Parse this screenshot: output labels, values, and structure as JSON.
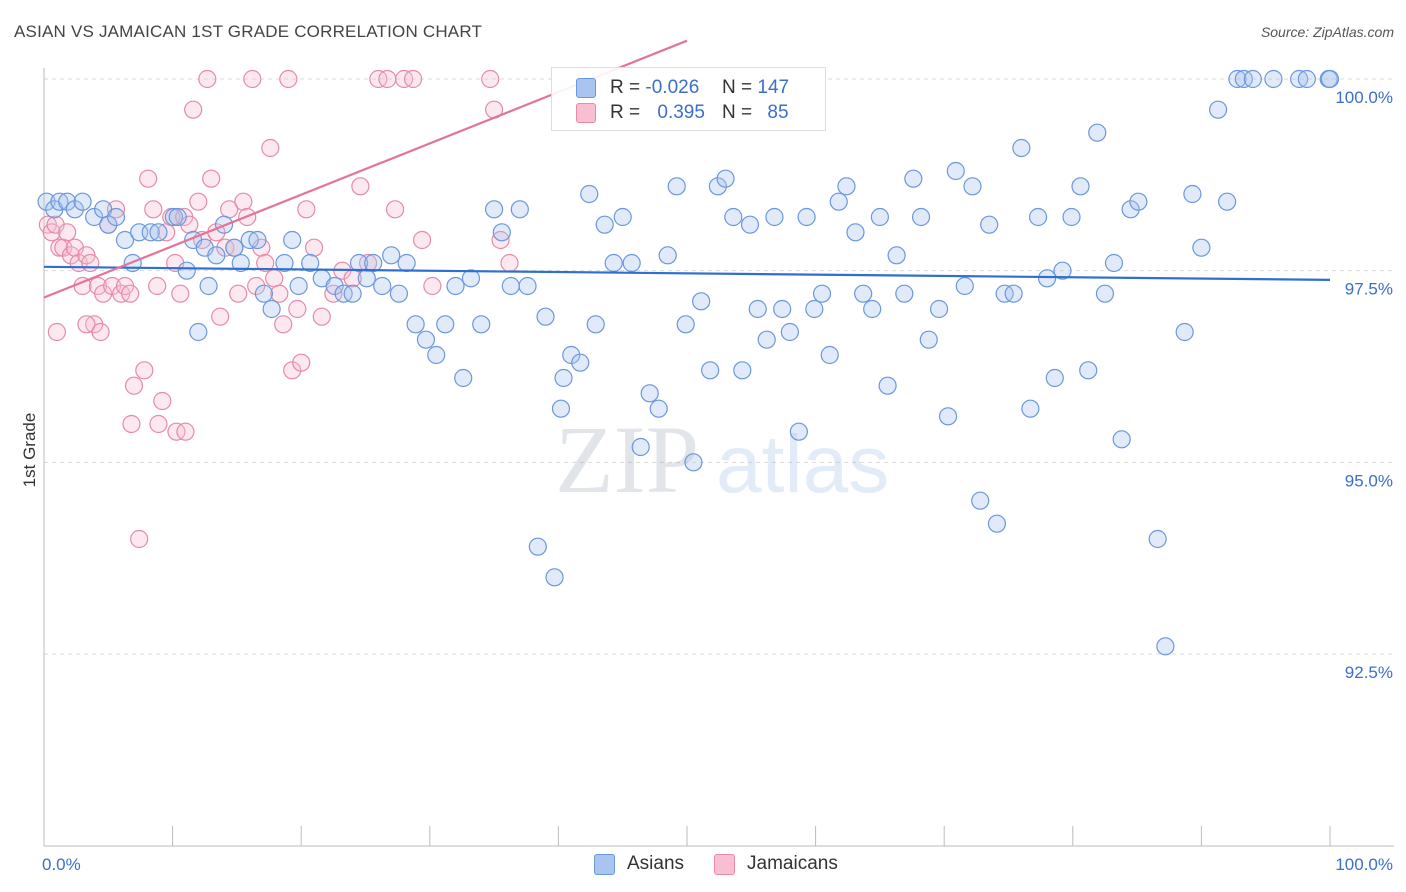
{
  "title": "ASIAN VS JAMAICAN 1ST GRADE CORRELATION CHART",
  "source": "Source: ZipAtlas.com",
  "watermark": {
    "zip": "ZIP",
    "atlas": "atlas"
  },
  "legend": {
    "rows": [
      {
        "r_label": "R =",
        "r_value": "-0.026",
        "n_label": "N =",
        "n_value": "147",
        "color": "#a9c4ef",
        "border": "#6a97dd"
      },
      {
        "r_label": "R =",
        "r_value": "0.395",
        "n_label": "N =",
        "n_value": "85",
        "color": "#f7bfd0",
        "border": "#e58aa8"
      }
    ]
  },
  "bottom_legend": [
    {
      "label": "Asians",
      "color": "#a9c4ef",
      "border": "#6a97dd"
    },
    {
      "label": "Jamaicans",
      "color": "#f7bfd0",
      "border": "#e58aa8"
    }
  ],
  "chart_data": {
    "type": "scatter",
    "title": "ASIAN VS JAMAICAN 1ST GRADE CORRELATION CHART",
    "xlabel": "",
    "ylabel": "1st Grade",
    "xlim": [
      0,
      100
    ],
    "ylim": [
      89.9,
      100.4
    ],
    "x_tick_labels": [
      "0.0%",
      "100.0%"
    ],
    "y_ticks": [
      92.5,
      95.0,
      97.5,
      100.0
    ],
    "y_tick_labels": [
      "92.5%",
      "95.0%",
      "97.5%",
      "100.0%"
    ],
    "grid": "horizontal dashed",
    "colors": {
      "asians": "#6a97dd",
      "asians_fill": "#a9c4ef",
      "jamaicans": "#e58aa8",
      "jamaicans_fill": "#f7bfd0",
      "asians_line": "#2f6fd1",
      "jamaicans_line": "#e2739a"
    },
    "series": [
      {
        "name": "Asians",
        "trend": {
          "x": [
            0,
            100
          ],
          "y": [
            97.55,
            97.38
          ]
        },
        "points": [
          [
            0.2,
            98.4
          ],
          [
            0.8,
            98.3
          ],
          [
            1.2,
            98.4
          ],
          [
            1.8,
            98.4
          ],
          [
            2.4,
            98.3
          ],
          [
            3.0,
            98.4
          ],
          [
            3.9,
            98.2
          ],
          [
            4.6,
            98.3
          ],
          [
            5.0,
            98.1
          ],
          [
            5.6,
            98.2
          ],
          [
            6.3,
            97.9
          ],
          [
            6.9,
            97.6
          ],
          [
            7.4,
            98.0
          ],
          [
            8.3,
            98.0
          ],
          [
            8.9,
            98.0
          ],
          [
            10.1,
            98.2
          ],
          [
            10.4,
            98.2
          ],
          [
            11.1,
            97.5
          ],
          [
            11.6,
            97.9
          ],
          [
            12.0,
            96.7
          ],
          [
            12.5,
            97.8
          ],
          [
            12.8,
            97.3
          ],
          [
            13.4,
            97.7
          ],
          [
            14.0,
            98.1
          ],
          [
            14.8,
            97.8
          ],
          [
            15.3,
            97.6
          ],
          [
            16.0,
            97.9
          ],
          [
            16.6,
            97.9
          ],
          [
            17.1,
            97.2
          ],
          [
            17.7,
            97.0
          ],
          [
            18.7,
            97.6
          ],
          [
            19.3,
            97.9
          ],
          [
            19.8,
            97.3
          ],
          [
            20.7,
            97.6
          ],
          [
            21.6,
            97.4
          ],
          [
            22.6,
            97.3
          ],
          [
            23.3,
            97.2
          ],
          [
            24.0,
            97.2
          ],
          [
            24.5,
            97.6
          ],
          [
            25.1,
            97.4
          ],
          [
            25.6,
            97.6
          ],
          [
            26.3,
            97.3
          ],
          [
            27.0,
            97.7
          ],
          [
            27.6,
            97.2
          ],
          [
            28.2,
            97.6
          ],
          [
            28.9,
            96.8
          ],
          [
            29.7,
            96.6
          ],
          [
            30.5,
            96.4
          ],
          [
            31.2,
            96.8
          ],
          [
            32.0,
            97.3
          ],
          [
            32.6,
            96.1
          ],
          [
            33.2,
            97.4
          ],
          [
            34.0,
            96.8
          ],
          [
            35.0,
            98.3
          ],
          [
            35.6,
            98.0
          ],
          [
            36.3,
            97.3
          ],
          [
            37.0,
            98.3
          ],
          [
            37.6,
            97.3
          ],
          [
            38.4,
            93.9
          ],
          [
            39.0,
            96.9
          ],
          [
            39.7,
            93.5
          ],
          [
            40.4,
            96.1
          ],
          [
            41.0,
            96.4
          ],
          [
            41.7,
            96.3
          ],
          [
            42.4,
            98.5
          ],
          [
            42.9,
            96.8
          ],
          [
            43.6,
            98.1
          ],
          [
            44.3,
            97.6
          ],
          [
            45.0,
            98.2
          ],
          [
            45.7,
            97.6
          ],
          [
            46.4,
            95.2
          ],
          [
            47.1,
            95.9
          ],
          [
            47.8,
            95.7
          ],
          [
            48.5,
            97.7
          ],
          [
            49.2,
            98.6
          ],
          [
            49.9,
            96.8
          ],
          [
            50.5,
            95.0
          ],
          [
            51.1,
            97.1
          ],
          [
            51.8,
            96.2
          ],
          [
            52.4,
            98.6
          ],
          [
            53.0,
            98.7
          ],
          [
            53.6,
            98.2
          ],
          [
            54.3,
            96.2
          ],
          [
            54.9,
            98.1
          ],
          [
            55.5,
            97.0
          ],
          [
            56.2,
            96.6
          ],
          [
            56.8,
            98.2
          ],
          [
            57.4,
            97.0
          ],
          [
            58.0,
            96.7
          ],
          [
            58.7,
            95.4
          ],
          [
            59.3,
            98.2
          ],
          [
            59.9,
            97.0
          ],
          [
            60.5,
            97.2
          ],
          [
            61.1,
            96.4
          ],
          [
            61.8,
            98.4
          ],
          [
            62.4,
            98.6
          ],
          [
            63.1,
            98.0
          ],
          [
            63.7,
            97.2
          ],
          [
            64.4,
            97.0
          ],
          [
            65.0,
            98.2
          ],
          [
            65.6,
            96.0
          ],
          [
            66.3,
            97.7
          ],
          [
            66.9,
            97.2
          ],
          [
            67.6,
            98.7
          ],
          [
            68.2,
            98.2
          ],
          [
            68.8,
            96.6
          ],
          [
            69.6,
            97.0
          ],
          [
            70.3,
            95.6
          ],
          [
            70.9,
            98.8
          ],
          [
            71.6,
            97.3
          ],
          [
            72.2,
            98.6
          ],
          [
            72.8,
            94.5
          ],
          [
            73.5,
            98.1
          ],
          [
            74.1,
            94.2
          ],
          [
            74.7,
            97.2
          ],
          [
            75.4,
            97.2
          ],
          [
            76.0,
            99.1
          ],
          [
            76.7,
            95.7
          ],
          [
            77.3,
            98.2
          ],
          [
            78.0,
            97.4
          ],
          [
            78.6,
            96.1
          ],
          [
            79.2,
            97.5
          ],
          [
            79.9,
            98.2
          ],
          [
            80.6,
            98.6
          ],
          [
            81.2,
            96.2
          ],
          [
            81.9,
            99.3
          ],
          [
            82.5,
            97.2
          ],
          [
            83.2,
            97.6
          ],
          [
            83.8,
            95.3
          ],
          [
            84.5,
            98.3
          ],
          [
            85.1,
            98.4
          ],
          [
            86.6,
            94.0
          ],
          [
            87.2,
            92.6
          ],
          [
            88.7,
            96.7
          ],
          [
            89.3,
            98.5
          ],
          [
            90.0,
            97.8
          ],
          [
            91.3,
            99.6
          ],
          [
            92.0,
            98.4
          ],
          [
            92.8,
            100.0
          ],
          [
            93.3,
            100.0
          ],
          [
            94.0,
            100.0
          ],
          [
            95.6,
            100.0
          ],
          [
            97.6,
            100.0
          ],
          [
            98.2,
            100.0
          ],
          [
            99.9,
            100.0
          ],
          [
            100.0,
            100.0
          ],
          [
            40.2,
            95.7
          ]
        ]
      },
      {
        "name": "Jamaicans",
        "trend": {
          "x": [
            0,
            50
          ],
          "y": [
            97.15,
            100.5
          ]
        },
        "points": [
          [
            0.3,
            98.1
          ],
          [
            0.6,
            98.0
          ],
          [
            0.9,
            98.1
          ],
          [
            1.2,
            97.8
          ],
          [
            1.5,
            97.8
          ],
          [
            1.8,
            98.0
          ],
          [
            2.1,
            97.7
          ],
          [
            2.4,
            97.8
          ],
          [
            2.7,
            97.6
          ],
          [
            3.0,
            97.3
          ],
          [
            3.3,
            97.7
          ],
          [
            3.6,
            97.6
          ],
          [
            3.9,
            96.8
          ],
          [
            4.2,
            97.3
          ],
          [
            4.6,
            97.2
          ],
          [
            5.0,
            98.1
          ],
          [
            5.3,
            97.3
          ],
          [
            5.6,
            98.3
          ],
          [
            6.0,
            97.2
          ],
          [
            6.3,
            97.3
          ],
          [
            6.7,
            97.2
          ],
          [
            7.0,
            96.0
          ],
          [
            7.4,
            94.0
          ],
          [
            7.8,
            96.2
          ],
          [
            8.1,
            98.7
          ],
          [
            8.5,
            98.3
          ],
          [
            8.8,
            97.3
          ],
          [
            9.2,
            95.8
          ],
          [
            9.5,
            98.0
          ],
          [
            9.9,
            98.2
          ],
          [
            10.2,
            97.6
          ],
          [
            10.6,
            97.2
          ],
          [
            10.9,
            98.2
          ],
          [
            11.3,
            98.1
          ],
          [
            11.6,
            99.6
          ],
          [
            12.0,
            98.4
          ],
          [
            12.3,
            97.9
          ],
          [
            12.7,
            100.0
          ],
          [
            13.0,
            98.7
          ],
          [
            13.4,
            98.0
          ],
          [
            13.7,
            96.9
          ],
          [
            14.1,
            97.8
          ],
          [
            14.4,
            98.3
          ],
          [
            14.8,
            97.8
          ],
          [
            15.1,
            97.2
          ],
          [
            15.5,
            98.4
          ],
          [
            15.8,
            98.2
          ],
          [
            16.2,
            100.0
          ],
          [
            16.5,
            97.3
          ],
          [
            16.9,
            97.8
          ],
          [
            17.2,
            97.6
          ],
          [
            17.6,
            99.1
          ],
          [
            17.9,
            97.4
          ],
          [
            18.3,
            97.2
          ],
          [
            18.6,
            96.8
          ],
          [
            19.0,
            100.0
          ],
          [
            19.3,
            96.2
          ],
          [
            19.7,
            97.0
          ],
          [
            20.0,
            96.3
          ],
          [
            20.4,
            98.3
          ],
          [
            21.0,
            97.8
          ],
          [
            21.6,
            96.9
          ],
          [
            22.5,
            97.2
          ],
          [
            23.2,
            97.5
          ],
          [
            24.0,
            97.4
          ],
          [
            24.6,
            98.6
          ],
          [
            25.2,
            97.6
          ],
          [
            26.0,
            100.0
          ],
          [
            26.7,
            100.0
          ],
          [
            27.3,
            98.3
          ],
          [
            28.0,
            100.0
          ],
          [
            28.7,
            100.0
          ],
          [
            29.4,
            97.9
          ],
          [
            30.2,
            97.3
          ],
          [
            34.7,
            100.0
          ],
          [
            35.5,
            97.9
          ],
          [
            36.2,
            97.6
          ],
          [
            1.0,
            96.7
          ],
          [
            3.3,
            96.8
          ],
          [
            4.4,
            96.7
          ],
          [
            6.8,
            95.5
          ],
          [
            8.9,
            95.5
          ],
          [
            10.3,
            95.4
          ],
          [
            11.0,
            95.4
          ],
          [
            35.0,
            99.6
          ]
        ]
      }
    ]
  }
}
